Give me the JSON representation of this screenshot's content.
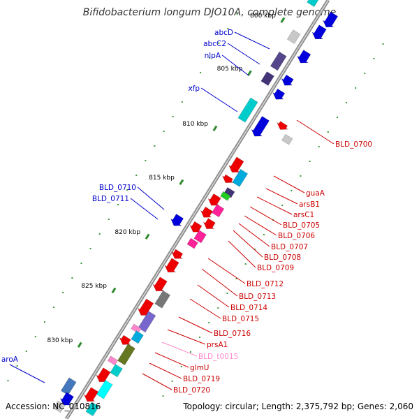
{
  "title": "Bifidobacterium longum DJO10A, complete genome",
  "footer": {
    "accession": "Accession: NC_010816",
    "summary": "Topology: circular; Length: 2,375,792 bp; Genes: 2,060"
  },
  "colors": {
    "background": "#ffffff",
    "backbone_outer": "#8c8c8c",
    "backbone_inner": "#d9d9d9",
    "tick": "#2f8a2f",
    "dot": "#3a9a3a",
    "label_blue": "#0000cc",
    "label_red": "#cc0000",
    "label_pink": "#ff88cc",
    "line_blue": "#0000cc",
    "line_red": "#cc0000",
    "line_pink": "#ff88cc"
  },
  "ticks": [
    {
      "label": "800 kbp"
    },
    {
      "label": "805 kbp"
    },
    {
      "label": "810 kbp"
    },
    {
      "label": "815 kbp"
    },
    {
      "label": "820 kbp"
    },
    {
      "label": "825 kbp"
    },
    {
      "label": "830 kbp"
    }
  ],
  "genes": [
    {
      "name": "abcD",
      "color": "#0000cc",
      "kind": "blue"
    },
    {
      "name": "abcC2",
      "color": "#0000cc",
      "kind": "blue"
    },
    {
      "name": "nlpA",
      "color": "#0000cc",
      "kind": "blue"
    },
    {
      "name": "xfp",
      "color": "#0000cc",
      "kind": "blue"
    },
    {
      "name": "BLD_0700",
      "color": "#cc0000",
      "kind": "red"
    },
    {
      "name": "BLD_0710",
      "color": "#0000cc",
      "kind": "blue"
    },
    {
      "name": "BLD_0711",
      "color": "#0000cc",
      "kind": "blue"
    },
    {
      "name": "guaA",
      "color": "#cc0000",
      "kind": "red"
    },
    {
      "name": "arsB1",
      "color": "#cc0000",
      "kind": "red"
    },
    {
      "name": "arsC1",
      "color": "#cc0000",
      "kind": "red"
    },
    {
      "name": "BLD_0705",
      "color": "#cc0000",
      "kind": "red"
    },
    {
      "name": "BLD_0706",
      "color": "#cc0000",
      "kind": "red"
    },
    {
      "name": "BLD_0707",
      "color": "#cc0000",
      "kind": "red"
    },
    {
      "name": "BLD_0708",
      "color": "#cc0000",
      "kind": "red"
    },
    {
      "name": "BLD_0709",
      "color": "#cc0000",
      "kind": "red"
    },
    {
      "name": "BLD_0712",
      "color": "#cc0000",
      "kind": "red"
    },
    {
      "name": "BLD_0713",
      "color": "#cc0000",
      "kind": "red"
    },
    {
      "name": "BLD_0714",
      "color": "#cc0000",
      "kind": "red"
    },
    {
      "name": "BLD_0715",
      "color": "#cc0000",
      "kind": "red"
    },
    {
      "name": "BLD_0716",
      "color": "#cc0000",
      "kind": "red"
    },
    {
      "name": "prsA1",
      "color": "#cc0000",
      "kind": "red"
    },
    {
      "name": "BLD_t0015",
      "color": "#ff88cc",
      "kind": "pink"
    },
    {
      "name": "glmU",
      "color": "#cc0000",
      "kind": "red"
    },
    {
      "name": "BLD_0719",
      "color": "#cc0000",
      "kind": "red"
    },
    {
      "name": "BLD_0720",
      "color": "#cc0000",
      "kind": "red"
    },
    {
      "name": "aroA",
      "color": "#0000cc",
      "kind": "blue"
    }
  ]
}
